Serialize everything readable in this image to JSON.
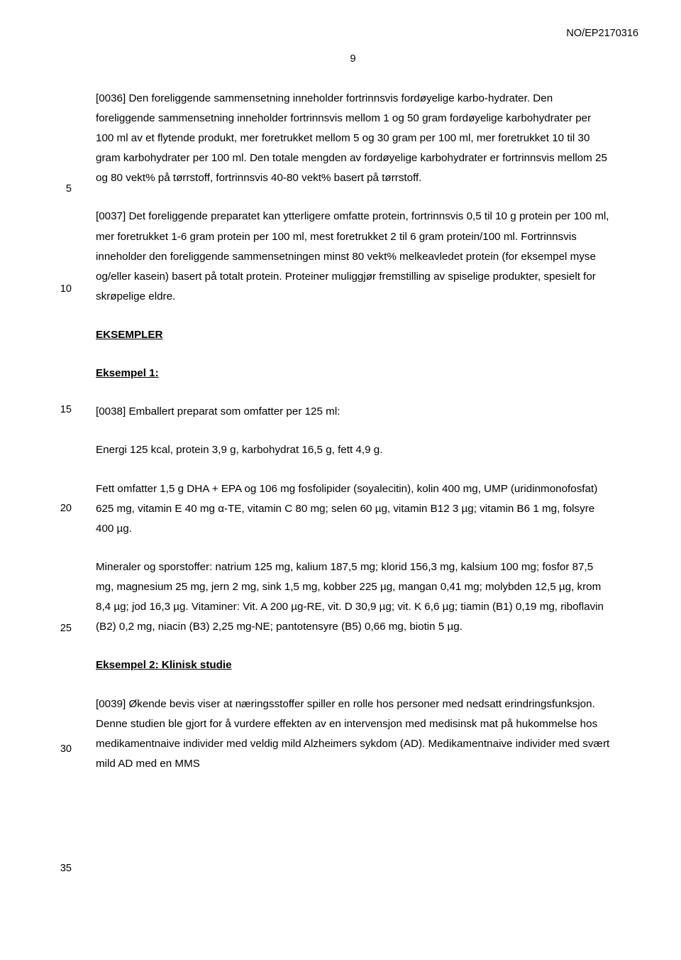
{
  "header": {
    "docNumber": "NO/EP2170316",
    "pageNumber": "9"
  },
  "lineNumbers": {
    "ln5": "5",
    "ln10": "10",
    "ln15": "15",
    "ln20": "20",
    "ln25": "25",
    "ln30": "30",
    "ln35": "35"
  },
  "paragraphs": {
    "p0036": "[0036] Den foreliggende sammensetning inneholder fortrinnsvis fordøyelige karbo-hydrater. Den foreliggende sammensetning inneholder fortrinnsvis mellom 1 og 50 gram fordøyelige karbohydrater per 100 ml av et flytende produkt, mer foretrukket mellom 5 og 30 gram per 100 ml, mer foretrukket 10 til 30 gram karbohydrater per 100 ml. Den totale mengden av fordøyelige karbohydrater er fortrinnsvis mellom 25 og 80 vekt% på tørrstoff, fortrinnsvis 40-80 vekt% basert på tørrstoff.",
    "p0037": "[0037] Det foreliggende preparatet kan ytterligere omfatte protein, fortrinnsvis 0,5 til 10 g protein per 100 ml, mer foretrukket 1-6 gram protein per 100 ml, mest foretrukket 2 til 6 gram protein/100 ml. Fortrinnsvis inneholder den foreliggende sammensetningen minst 80 vekt% melkeavledet protein (for eksempel myse og/eller kasein) basert på totalt protein. Proteiner muliggjør fremstilling av spiselige produkter, spesielt for skrøpelige eldre.",
    "eksemplerHeading": "EKSEMPLER",
    "eksempel1Heading": "Eksempel 1:",
    "p0038": "[0038] Emballert preparat som omfatter per 125 ml:",
    "energi": "Energi 125 kcal, protein 3,9 g, karbohydrat 16,5 g, fett 4,9 g.",
    "fett": "Fett omfatter 1,5 g DHA + EPA og 106 mg fosfolipider (soyalecitin), kolin 400 mg, UMP (uridinmonofosfat) 625 mg, vitamin E 40 mg α-TE, vitamin C 80 mg; selen 60 µg, vitamin B12 3 µg; vitamin B6 1 mg, folsyre 400 µg.",
    "mineraler": "Mineraler og sporstoffer: natrium 125 mg, kalium 187,5 mg; klorid 156,3 mg, kalsium 100 mg; fosfor 87,5 mg, magnesium 25 mg, jern 2 mg, sink 1,5 mg, kobber 225 µg, mangan 0,41 mg; molybden 12,5 µg, krom 8,4 µg; jod 16,3 µg. Vitaminer: Vit. A 200 µg-RE, vit. D 30,9 µg; vit. K 6,6 µg; tiamin (B1) 0,19 mg, riboflavin (B2) 0,2 mg, niacin (B3) 2,25 mg-NE; pantotensyre (B5) 0,66 mg, biotin 5 µg.",
    "eksempel2Heading": "Eksempel 2: Klinisk studie",
    "p0039": "[0039] Økende bevis viser at næringsstoffer spiller en rolle hos personer med nedsatt erindringsfunksjon. Denne studien ble gjort for å vurdere effekten av en intervensjon med medisinsk mat på hukommelse hos medikamentnaive individer med veldig mild Alzheimers sykdom (AD). Medikamentnaive individer med svært mild AD med en MMS"
  },
  "style": {
    "fontFamily": "Verdana, Geneva, sans-serif",
    "fontSizePt": 11,
    "textColor": "#000000",
    "background": "#ffffff",
    "pageWidth": 960,
    "pageHeight": 1352
  }
}
